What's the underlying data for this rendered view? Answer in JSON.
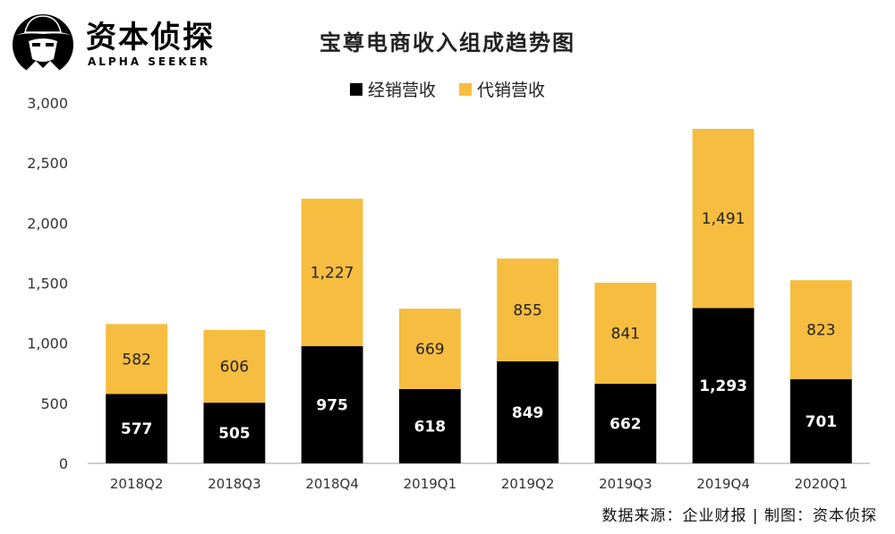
{
  "logo": {
    "name_cn": "资本侦探",
    "name_en": "ALPHA SEEKER"
  },
  "colors": {
    "series1": "#000000",
    "series2": "#F6BD40",
    "axis": "#bfbfbf",
    "tick_text": "#333333"
  },
  "chart_data": {
    "type": "bar",
    "stacked": true,
    "title": "宝尊电商收入组成趋势图",
    "categories": [
      "2018Q2",
      "2018Q3",
      "2018Q4",
      "2019Q1",
      "2019Q2",
      "2019Q3",
      "2019Q4",
      "2020Q1"
    ],
    "series": [
      {
        "name": "经销营收",
        "values": [
          577,
          505,
          975,
          618,
          849,
          662,
          1293,
          701
        ]
      },
      {
        "name": "代销营收",
        "values": [
          582,
          606,
          1227,
          669,
          855,
          841,
          1491,
          823
        ]
      }
    ],
    "data_labels": [
      [
        "577",
        "505",
        "975",
        "618",
        "849",
        "662",
        "1,293",
        "701"
      ],
      [
        "582",
        "606",
        "1,227",
        "669",
        "855",
        "841",
        "1,491",
        "823"
      ]
    ],
    "ylim": [
      0,
      3000
    ],
    "yticks": [
      0,
      500,
      1000,
      1500,
      2000,
      2500,
      3000
    ],
    "ytick_labels": [
      "0",
      "500",
      "1,000",
      "1,500",
      "2,000",
      "2,500",
      "3,000"
    ],
    "legend_position": "top-center",
    "grid": false
  },
  "source_note": "数据来源：企业财报 | 制图：资本侦探"
}
